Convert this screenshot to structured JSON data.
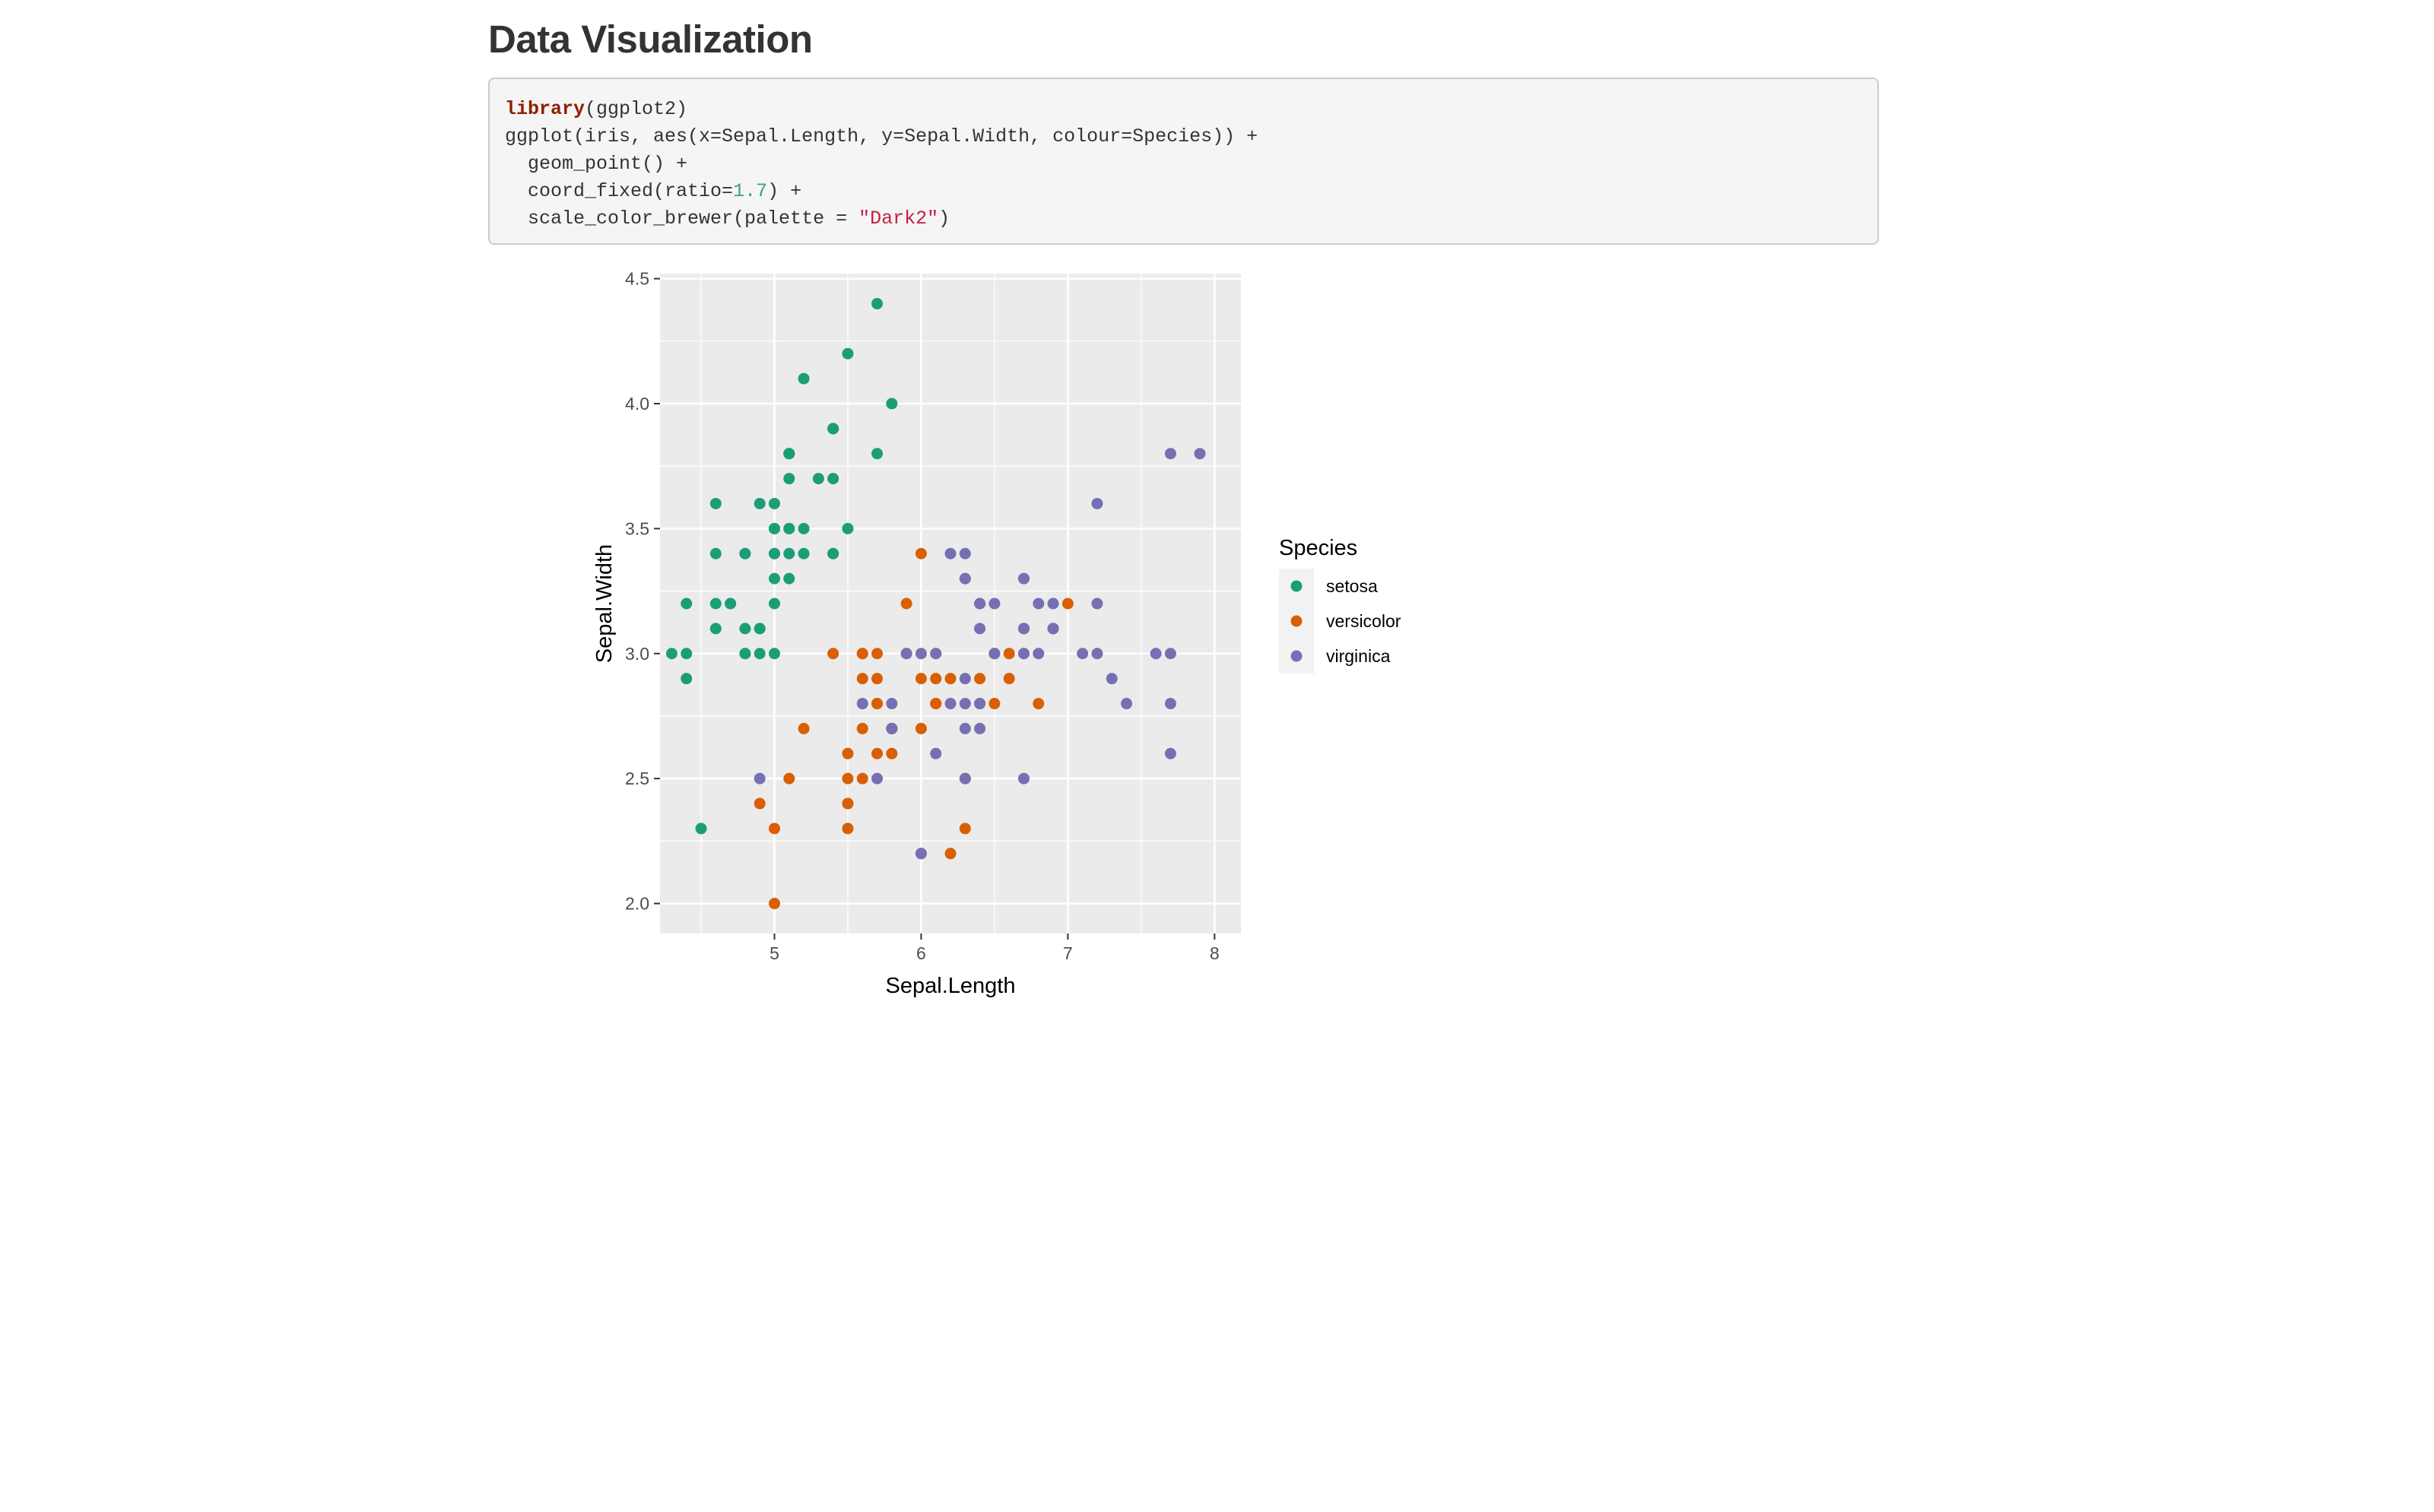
{
  "page": {
    "title": "Data Visualization"
  },
  "code": {
    "lines": [
      [
        {
          "t": "library",
          "k": "kw"
        },
        {
          "t": "(ggplot2)",
          "k": "plain"
        }
      ],
      [
        {
          "t": "ggplot(iris, aes(x=Sepal.Length, y=Sepal.Width, colour=Species)) +",
          "k": "plain"
        }
      ],
      [
        {
          "t": "  geom_point() +",
          "k": "plain"
        }
      ],
      [
        {
          "t": "  coord_fixed(ratio=",
          "k": "plain"
        },
        {
          "t": "1.7",
          "k": "num"
        },
        {
          "t": ") +",
          "k": "plain"
        }
      ],
      [
        {
          "t": "  scale_color_brewer(palette = ",
          "k": "plain"
        },
        {
          "t": "\"Dark2\"",
          "k": "str"
        },
        {
          "t": ")",
          "k": "plain"
        }
      ]
    ]
  },
  "chart_data": {
    "type": "scatter",
    "title": "",
    "xlabel": "Sepal.Length",
    "ylabel": "Sepal.Width",
    "xlim": [
      4.22,
      8.18
    ],
    "ylim": [
      1.88,
      4.52
    ],
    "xticks": [
      5,
      6,
      7,
      8
    ],
    "xtick_labels": [
      "5",
      "6",
      "7",
      "8"
    ],
    "yticks": [
      2.0,
      2.5,
      3.0,
      3.5,
      4.0,
      4.5
    ],
    "ytick_labels": [
      "2.0",
      "2.5",
      "3.0",
      "3.5",
      "4.0",
      "4.5"
    ],
    "grid": true,
    "legend": {
      "title": "Species",
      "position": "right"
    },
    "colors": {
      "panel": "#ebebeb",
      "grid": "#ffffff",
      "text": "#4d4d4d",
      "title_text": "#000000"
    },
    "series": [
      {
        "name": "setosa",
        "color": "#1b9e77",
        "points": [
          [
            5.1,
            3.5
          ],
          [
            4.9,
            3.0
          ],
          [
            4.7,
            3.2
          ],
          [
            4.6,
            3.1
          ],
          [
            5.0,
            3.6
          ],
          [
            5.4,
            3.9
          ],
          [
            4.6,
            3.4
          ],
          [
            5.0,
            3.4
          ],
          [
            4.4,
            2.9
          ],
          [
            4.9,
            3.1
          ],
          [
            5.4,
            3.7
          ],
          [
            4.8,
            3.4
          ],
          [
            4.8,
            3.0
          ],
          [
            4.3,
            3.0
          ],
          [
            5.8,
            4.0
          ],
          [
            5.7,
            4.4
          ],
          [
            5.4,
            3.9
          ],
          [
            5.1,
            3.5
          ],
          [
            5.7,
            3.8
          ],
          [
            5.1,
            3.8
          ],
          [
            5.4,
            3.4
          ],
          [
            5.1,
            3.7
          ],
          [
            4.6,
            3.6
          ],
          [
            5.1,
            3.3
          ],
          [
            4.8,
            3.4
          ],
          [
            5.0,
            3.0
          ],
          [
            5.0,
            3.4
          ],
          [
            5.2,
            3.5
          ],
          [
            5.2,
            3.4
          ],
          [
            4.7,
            3.2
          ],
          [
            4.8,
            3.1
          ],
          [
            5.4,
            3.4
          ],
          [
            5.2,
            4.1
          ],
          [
            5.5,
            4.2
          ],
          [
            4.9,
            3.1
          ],
          [
            5.0,
            3.2
          ],
          [
            5.5,
            3.5
          ],
          [
            4.9,
            3.6
          ],
          [
            4.4,
            3.0
          ],
          [
            5.1,
            3.4
          ],
          [
            5.0,
            3.5
          ],
          [
            4.5,
            2.3
          ],
          [
            4.4,
            3.2
          ],
          [
            5.0,
            3.5
          ],
          [
            5.1,
            3.8
          ],
          [
            4.8,
            3.0
          ],
          [
            5.1,
            3.8
          ],
          [
            4.6,
            3.2
          ],
          [
            5.3,
            3.7
          ],
          [
            5.0,
            3.3
          ]
        ]
      },
      {
        "name": "versicolor",
        "color": "#d95f02",
        "points": [
          [
            7.0,
            3.2
          ],
          [
            6.4,
            3.2
          ],
          [
            6.9,
            3.1
          ],
          [
            5.5,
            2.3
          ],
          [
            6.5,
            2.8
          ],
          [
            5.7,
            2.8
          ],
          [
            6.3,
            3.3
          ],
          [
            4.9,
            2.4
          ],
          [
            6.6,
            2.9
          ],
          [
            5.2,
            2.7
          ],
          [
            5.0,
            2.0
          ],
          [
            5.9,
            3.0
          ],
          [
            6.0,
            2.2
          ],
          [
            6.1,
            2.9
          ],
          [
            5.6,
            2.9
          ],
          [
            6.7,
            3.1
          ],
          [
            5.6,
            3.0
          ],
          [
            5.8,
            2.7
          ],
          [
            6.2,
            2.2
          ],
          [
            5.6,
            2.5
          ],
          [
            5.9,
            3.2
          ],
          [
            6.1,
            2.8
          ],
          [
            6.3,
            2.5
          ],
          [
            6.1,
            2.8
          ],
          [
            6.4,
            2.9
          ],
          [
            6.6,
            3.0
          ],
          [
            6.8,
            2.8
          ],
          [
            6.7,
            3.0
          ],
          [
            6.0,
            2.9
          ],
          [
            5.7,
            2.6
          ],
          [
            5.5,
            2.4
          ],
          [
            5.5,
            2.4
          ],
          [
            5.8,
            2.7
          ],
          [
            6.0,
            2.7
          ],
          [
            5.4,
            3.0
          ],
          [
            6.0,
            3.4
          ],
          [
            6.7,
            3.1
          ],
          [
            6.3,
            2.3
          ],
          [
            5.6,
            3.0
          ],
          [
            5.5,
            2.5
          ],
          [
            5.5,
            2.6
          ],
          [
            6.1,
            3.0
          ],
          [
            5.8,
            2.6
          ],
          [
            5.0,
            2.3
          ],
          [
            5.6,
            2.7
          ],
          [
            5.7,
            3.0
          ],
          [
            5.7,
            2.9
          ],
          [
            6.2,
            2.9
          ],
          [
            5.1,
            2.5
          ],
          [
            5.7,
            2.8
          ]
        ]
      },
      {
        "name": "virginica",
        "color": "#7570b3",
        "points": [
          [
            6.3,
            3.3
          ],
          [
            5.8,
            2.7
          ],
          [
            7.1,
            3.0
          ],
          [
            6.3,
            2.9
          ],
          [
            6.5,
            3.0
          ],
          [
            7.6,
            3.0
          ],
          [
            4.9,
            2.5
          ],
          [
            7.3,
            2.9
          ],
          [
            6.7,
            2.5
          ],
          [
            7.2,
            3.6
          ],
          [
            6.5,
            3.2
          ],
          [
            6.4,
            2.7
          ],
          [
            6.8,
            3.0
          ],
          [
            5.7,
            2.5
          ],
          [
            5.8,
            2.8
          ],
          [
            6.4,
            3.2
          ],
          [
            6.5,
            3.0
          ],
          [
            7.7,
            3.8
          ],
          [
            7.7,
            2.6
          ],
          [
            6.0,
            2.2
          ],
          [
            6.9,
            3.2
          ],
          [
            5.6,
            2.8
          ],
          [
            7.7,
            2.8
          ],
          [
            6.3,
            2.7
          ],
          [
            6.7,
            3.3
          ],
          [
            7.2,
            3.2
          ],
          [
            6.2,
            2.8
          ],
          [
            6.1,
            3.0
          ],
          [
            6.4,
            2.8
          ],
          [
            7.2,
            3.0
          ],
          [
            7.4,
            2.8
          ],
          [
            7.9,
            3.8
          ],
          [
            6.4,
            2.8
          ],
          [
            6.3,
            2.8
          ],
          [
            6.1,
            2.6
          ],
          [
            7.7,
            3.0
          ],
          [
            6.3,
            3.4
          ],
          [
            6.4,
            3.1
          ],
          [
            6.0,
            3.0
          ],
          [
            6.9,
            3.1
          ],
          [
            6.7,
            3.1
          ],
          [
            6.9,
            3.1
          ],
          [
            5.8,
            2.7
          ],
          [
            6.8,
            3.2
          ],
          [
            6.7,
            3.3
          ],
          [
            6.7,
            3.0
          ],
          [
            6.3,
            2.5
          ],
          [
            6.5,
            3.0
          ],
          [
            6.2,
            3.4
          ],
          [
            5.9,
            3.0
          ]
        ]
      }
    ]
  }
}
